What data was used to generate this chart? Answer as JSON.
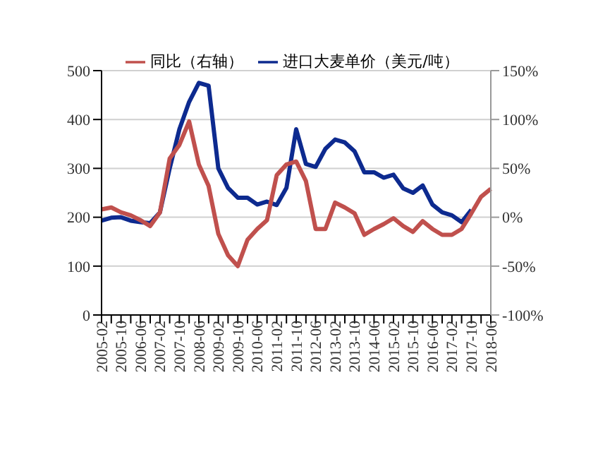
{
  "chart_data": {
    "type": "line",
    "categories": [
      "2005-02",
      null,
      "2005-10",
      null,
      "2006-06",
      null,
      "2007-02",
      null,
      "2007-10",
      null,
      "2008-06",
      null,
      "2009-02",
      null,
      "2009-10",
      null,
      "2010-06",
      null,
      "2011-02",
      null,
      "2011-10",
      null,
      "2012-06",
      null,
      "2013-02",
      null,
      "2013-10",
      null,
      "2014-06",
      null,
      "2015-02",
      null,
      "2015-10",
      null,
      "2016-06",
      null,
      "2017-02",
      null,
      "2017-10",
      null,
      "2018-06"
    ],
    "series": [
      {
        "name": "进口大麦单价（美元/吨）",
        "color": "#0d2a8f",
        "values": [
          193,
          199,
          200,
          193,
          190,
          188,
          210,
          300,
          380,
          436,
          475,
          469,
          300,
          260,
          240,
          240,
          226,
          232,
          225,
          260,
          380,
          309,
          303,
          340,
          359,
          353,
          335,
          292,
          292,
          281,
          287,
          259,
          250,
          265,
          226,
          210,
          204,
          190,
          215,
          null,
          null
        ]
      },
      {
        "name": "同比（右轴）",
        "color": "#c0504d",
        "axis": "y2",
        "values": [
          8,
          10,
          5,
          2,
          -3,
          -9,
          5,
          60,
          74,
          98,
          54,
          32,
          -17,
          -39,
          -50,
          -23,
          -12,
          -3,
          43,
          54,
          57,
          37,
          -12,
          -12,
          15,
          10,
          4,
          -18,
          -12,
          -7,
          -1,
          -9,
          -15,
          -4,
          -12,
          -18,
          -18,
          -12,
          4,
          21,
          29
        ]
      }
    ],
    "ylim": [
      0,
      500
    ],
    "yticks": [
      0,
      100,
      200,
      300,
      400,
      500
    ],
    "y2lim": [
      -100,
      150
    ],
    "y2ticks": [
      {
        "value": -100,
        "label": "-100%"
      },
      {
        "value": -50,
        "label": "-50%"
      },
      {
        "value": 0,
        "label": "0%"
      },
      {
        "value": 50,
        "label": "50%"
      },
      {
        "value": 100,
        "label": "100%"
      },
      {
        "value": 150,
        "label": "150%"
      }
    ],
    "grid": "y",
    "legend": "top",
    "marker": "none",
    "line_style": "solid"
  }
}
